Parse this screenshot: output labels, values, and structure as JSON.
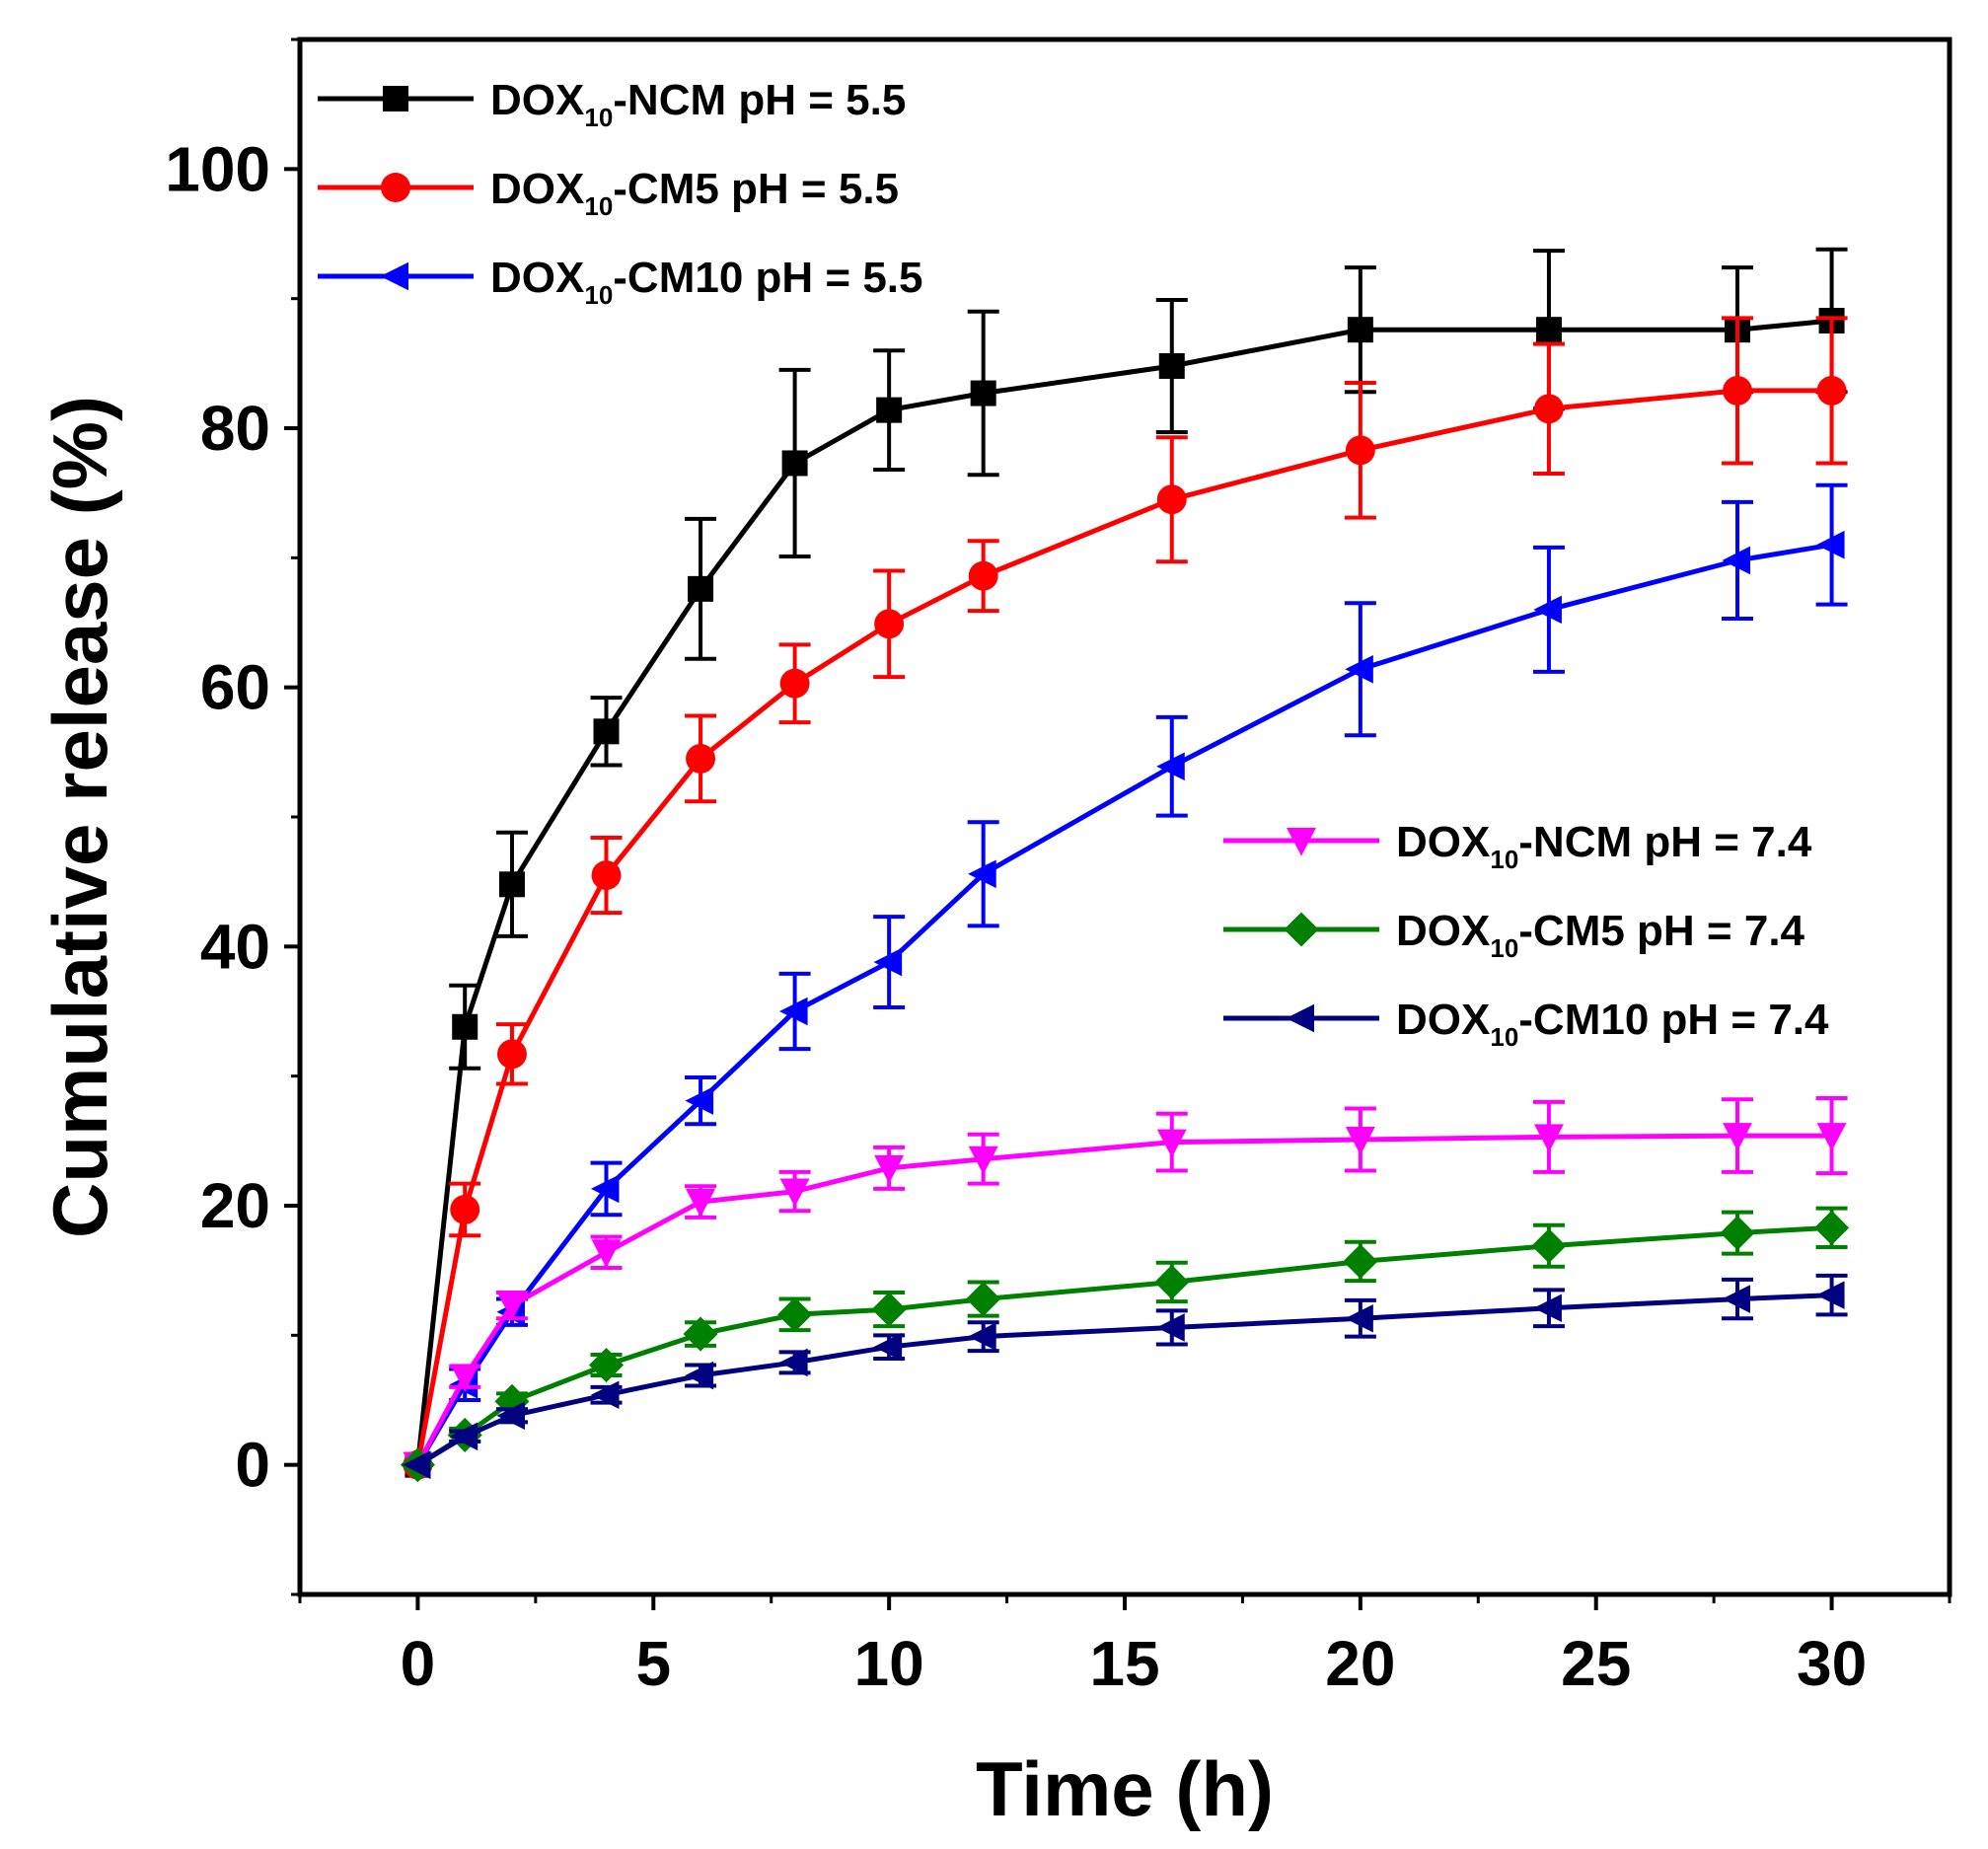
{
  "chart_data": {
    "type": "line",
    "xlabel": "Time (h)",
    "ylabel": "Cumulative release (%)",
    "xlim": [
      -2.5,
      32.5
    ],
    "ylim": [
      -10,
      110
    ],
    "xticks": [
      0,
      5,
      10,
      15,
      20,
      25,
      30
    ],
    "yticks": [
      0,
      20,
      40,
      60,
      80,
      100
    ],
    "x": [
      0,
      1,
      2,
      4,
      6,
      8,
      10,
      12,
      16,
      20,
      24,
      28,
      30
    ],
    "series": [
      {
        "name": "DOX10-NCM pH = 5.5",
        "legend": {
          "prefix": "DOX",
          "sub": "10",
          "suffix": "-NCM pH = 5.5"
        },
        "color": "#000000",
        "marker": "square",
        "values": [
          0,
          33.8,
          44.8,
          56.6,
          67.6,
          77.3,
          81.4,
          82.7,
          84.8,
          87.6,
          87.6,
          87.6,
          88.3
        ],
        "errors": [
          0,
          3.2,
          4.0,
          2.6,
          5.4,
          7.2,
          4.6,
          6.3,
          5.1,
          4.8,
          6.1,
          4.8,
          5.5
        ]
      },
      {
        "name": "DOX10-CM5 pH = 5.5",
        "legend": {
          "prefix": "DOX",
          "sub": "10",
          "suffix": "-CM5 pH = 5.5"
        },
        "color": "#ff0000",
        "marker": "circle",
        "values": [
          0,
          19.7,
          31.7,
          45.5,
          54.5,
          60.3,
          64.9,
          68.6,
          74.5,
          78.3,
          81.5,
          82.9,
          82.9
        ],
        "errors": [
          0,
          2.0,
          2.3,
          2.9,
          3.3,
          3.0,
          4.1,
          2.7,
          4.8,
          5.2,
          5.0,
          5.6,
          5.6
        ]
      },
      {
        "name": "DOX10-CM10 pH = 5.5",
        "legend": {
          "prefix": "DOX",
          "sub": "10",
          "suffix": "-CM10 pH = 5.5"
        },
        "color": "#0000ff",
        "marker": "triangle-left",
        "values": [
          0,
          6.2,
          11.8,
          21.3,
          28.1,
          35.0,
          38.8,
          45.6,
          53.9,
          61.4,
          66.0,
          69.8,
          71.0
        ],
        "errors": [
          0,
          1.2,
          1.0,
          2.0,
          1.8,
          2.9,
          3.5,
          4.0,
          3.8,
          5.1,
          4.8,
          4.5,
          4.6
        ]
      },
      {
        "name": "DOX10-NCM pH = 7.4",
        "legend": {
          "prefix": "DOX",
          "sub": "10",
          "suffix": "-NCM pH = 7.4"
        },
        "color": "#ff00ff",
        "marker": "triangle-down",
        "values": [
          0,
          6.8,
          12.3,
          16.4,
          20.3,
          21.1,
          22.9,
          23.6,
          24.9,
          25.1,
          25.3,
          25.4,
          25.4
        ],
        "errors": [
          0,
          0.8,
          1.0,
          1.2,
          1.2,
          1.5,
          1.6,
          1.9,
          2.2,
          2.4,
          2.7,
          2.8,
          2.9
        ]
      },
      {
        "name": "DOX10-CM5 pH = 7.4",
        "legend": {
          "prefix": "DOX",
          "sub": "10",
          "suffix": "-CM5 pH = 7.4"
        },
        "color": "#008000",
        "marker": "diamond",
        "values": [
          0,
          2.3,
          4.9,
          7.7,
          10.1,
          11.6,
          12.0,
          12.8,
          14.1,
          15.7,
          16.9,
          17.9,
          18.3
        ],
        "errors": [
          0,
          0.5,
          0.6,
          0.8,
          0.9,
          1.2,
          1.3,
          1.3,
          1.5,
          1.5,
          1.6,
          1.6,
          1.5
        ]
      },
      {
        "name": "DOX10-CM10 pH = 7.4",
        "legend": {
          "prefix": "DOX",
          "sub": "10",
          "suffix": "-CM10 pH = 7.4"
        },
        "color": "#000080",
        "marker": "triangle-left",
        "values": [
          0,
          2.2,
          3.8,
          5.4,
          6.9,
          7.9,
          9.1,
          9.9,
          10.6,
          11.3,
          12.1,
          12.8,
          13.1
        ],
        "errors": [
          0,
          0.4,
          0.5,
          0.6,
          0.8,
          0.8,
          0.9,
          1.1,
          1.3,
          1.4,
          1.4,
          1.5,
          1.5
        ]
      }
    ],
    "legends": [
      {
        "placement": "top-left",
        "series": [
          0,
          1,
          2
        ]
      },
      {
        "placement": "middle-right",
        "series": [
          3,
          4,
          5
        ]
      }
    ]
  }
}
